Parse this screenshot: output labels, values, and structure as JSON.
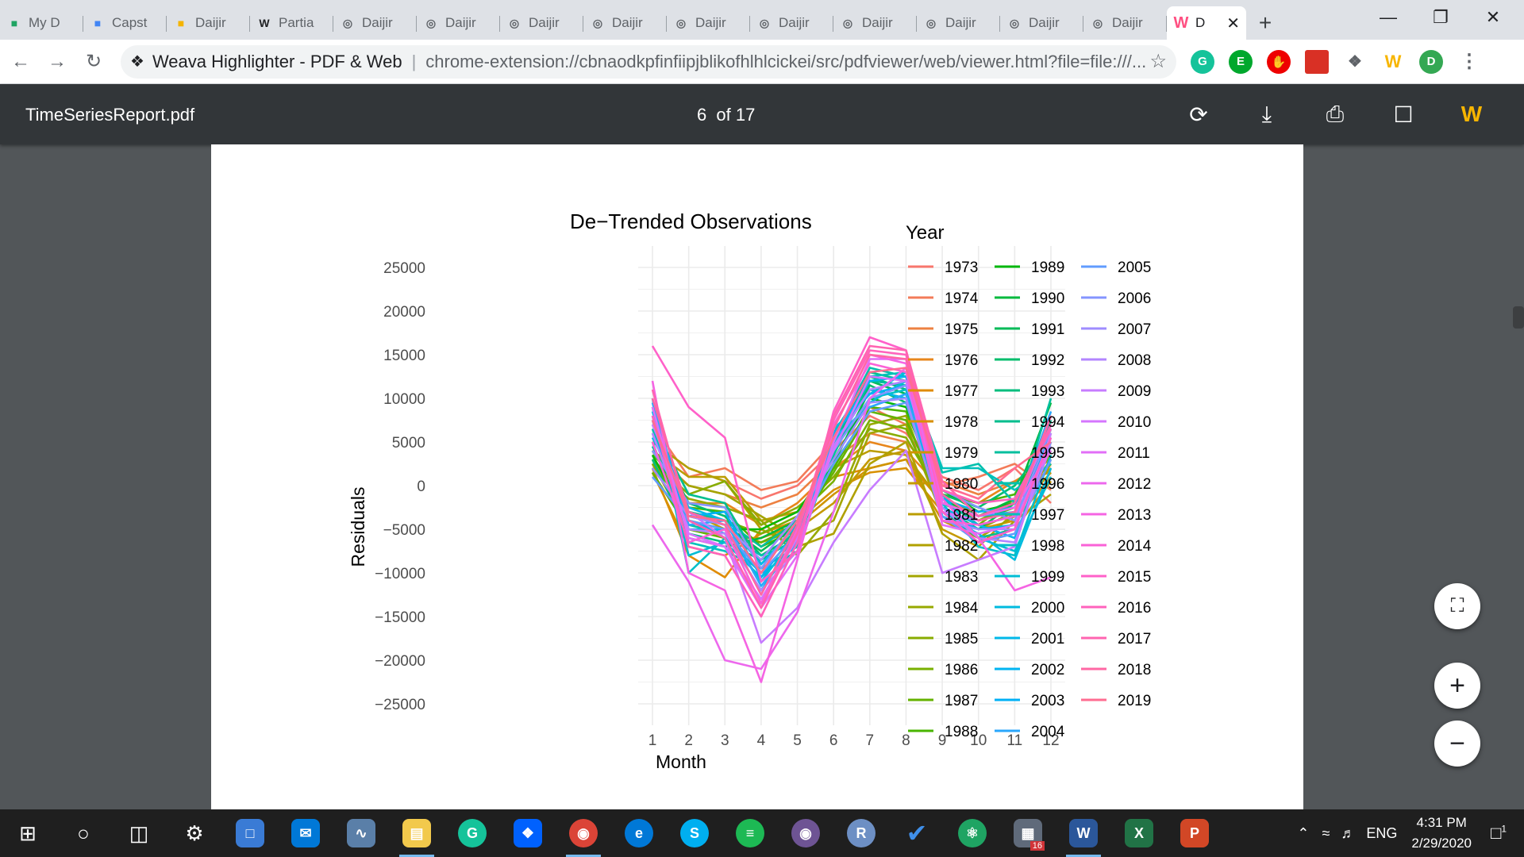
{
  "browser": {
    "tabs": [
      {
        "label": "My D",
        "icon": "drive-icon",
        "color": "#1fa463"
      },
      {
        "label": "Capst",
        "icon": "docs-icon",
        "color": "#4285f4"
      },
      {
        "label": "Daijir",
        "icon": "slides-icon",
        "color": "#f4b400"
      },
      {
        "label": "Partia",
        "icon": "wikipedia-icon",
        "color": "#202124"
      },
      {
        "label": "Daijir",
        "icon": "globe-icon",
        "color": "#5f6368"
      },
      {
        "label": "Daijir",
        "icon": "globe-icon",
        "color": "#5f6368"
      },
      {
        "label": "Daijir",
        "icon": "globe-icon",
        "color": "#5f6368"
      },
      {
        "label": "Daijir",
        "icon": "globe-icon",
        "color": "#5f6368"
      },
      {
        "label": "Daijir",
        "icon": "globe-icon",
        "color": "#5f6368"
      },
      {
        "label": "Daijir",
        "icon": "globe-icon",
        "color": "#5f6368"
      },
      {
        "label": "Daijir",
        "icon": "globe-icon",
        "color": "#5f6368"
      },
      {
        "label": "Daijir",
        "icon": "globe-icon",
        "color": "#5f6368"
      },
      {
        "label": "Daijir",
        "icon": "globe-icon",
        "color": "#5f6368"
      },
      {
        "label": "Daijir",
        "icon": "globe-icon",
        "color": "#5f6368"
      }
    ],
    "active_tab": {
      "label": "D",
      "icon": "weava-icon"
    },
    "omnibox": {
      "extension_name": "Weava Highlighter - PDF & Web",
      "url": "chrome-extension://cbnaodkpfinfiipjblikofhlhlcickei/src/pdfviewer/web/viewer.html?file=file:///..."
    },
    "profile_initial": "D"
  },
  "pdf_viewer": {
    "filename": "TimeSeriesReport.pdf",
    "current_page": "6",
    "page_count_label": "of 17"
  },
  "chart_data": {
    "type": "line",
    "title": "De−Trended Observations",
    "xlabel": "Month",
    "ylabel": "Residuals",
    "x": [
      1,
      2,
      3,
      4,
      5,
      6,
      7,
      8,
      9,
      10,
      11,
      12
    ],
    "x_ticks": [
      "1",
      "2",
      "3",
      "4",
      "5",
      "6",
      "7",
      "8",
      "9",
      "10",
      "11",
      "12"
    ],
    "y_ticks": [
      "25000",
      "20000",
      "15000",
      "10000",
      "5000",
      "0",
      "−5000",
      "−10000",
      "−15000",
      "−20000",
      "−25000"
    ],
    "ylim": [
      -25000,
      25000
    ],
    "grid": true,
    "legend_title": "Year",
    "legend_position": "right",
    "series": [
      {
        "name": "1973",
        "color": "#f8766d",
        "values": [
          5000,
          2000,
          500,
          -1500,
          0,
          4000,
          8000,
          6000,
          1000,
          -500,
          2000,
          -2000
        ]
      },
      {
        "name": "1974",
        "color": "#f37b59",
        "values": [
          7000,
          1000,
          2000,
          -500,
          500,
          5000,
          9000,
          7000,
          0,
          1000,
          2500,
          -500
        ]
      },
      {
        "name": "1975",
        "color": "#ed8141",
        "values": [
          4000,
          0,
          -1000,
          -2500,
          -1000,
          3000,
          6000,
          5000,
          500,
          -1000,
          500,
          1500
        ]
      },
      {
        "name": "1976",
        "color": "#e7861b",
        "values": [
          3000,
          -2000,
          -2000,
          -4500,
          -2000,
          2000,
          5000,
          4000,
          -500,
          -2000,
          500,
          3000
        ]
      },
      {
        "name": "1977",
        "color": "#e08b00",
        "values": [
          2000,
          -8000,
          -10500,
          -5000,
          -3000,
          1000,
          2000,
          3000,
          -2000,
          -3000,
          -2000,
          2000
        ]
      },
      {
        "name": "1978",
        "color": "#d89000",
        "values": [
          1500,
          -7000,
          -8000,
          -5500,
          -4000,
          -500,
          1500,
          2000,
          -3000,
          -5000,
          -4000,
          1000
        ]
      },
      {
        "name": "1979",
        "color": "#cf9400",
        "values": [
          2500,
          -5000,
          -6000,
          -6000,
          -4500,
          -1000,
          2000,
          3000,
          -4000,
          -6000,
          -5000,
          500
        ]
      },
      {
        "name": "1980",
        "color": "#c59900",
        "values": [
          3000,
          -3000,
          -5000,
          -6500,
          -5000,
          -2000,
          3000,
          4000,
          -5000,
          -7000,
          -3000,
          1500
        ]
      },
      {
        "name": "1981",
        "color": "#bb9d00",
        "values": [
          4000,
          1000,
          1000,
          -4000,
          -3000,
          2000,
          4000,
          3500,
          -2000,
          -4000,
          -2000,
          2000
        ]
      },
      {
        "name": "1982",
        "color": "#b0a100",
        "values": [
          5000,
          2000,
          500,
          -5000,
          -7000,
          -5500,
          2500,
          5000,
          -5500,
          -8500,
          -4000,
          -1000
        ]
      },
      {
        "name": "1983",
        "color": "#a3a500",
        "values": [
          3500,
          0,
          -1000,
          -3500,
          -6000,
          -4000,
          6000,
          7000,
          -3500,
          -6000,
          -3500,
          2500
        ]
      },
      {
        "name": "1984",
        "color": "#97a900",
        "values": [
          2000,
          -1500,
          -2500,
          -4000,
          -8000,
          -3000,
          7000,
          8000,
          -3000,
          -5000,
          -3000,
          3000
        ]
      },
      {
        "name": "1985",
        "color": "#88ac00",
        "values": [
          3000,
          -1000,
          500,
          -4500,
          -2500,
          1000,
          6500,
          5500,
          -1500,
          -3500,
          -2000,
          4000
        ]
      },
      {
        "name": "1986",
        "color": "#78b000",
        "values": [
          2500,
          -3000,
          -4000,
          -5500,
          -3500,
          500,
          7500,
          6500,
          -2500,
          -4500,
          -1500,
          3500
        ]
      },
      {
        "name": "1987",
        "color": "#64b200",
        "values": [
          1500,
          -5000,
          -6000,
          -6500,
          -4500,
          1500,
          8500,
          7500,
          -2000,
          -4000,
          -2500,
          5000
        ]
      },
      {
        "name": "1988",
        "color": "#49b500",
        "values": [
          4000,
          -2500,
          -3000,
          -7000,
          -5000,
          2000,
          9000,
          8500,
          -1000,
          -2000,
          -1000,
          6000
        ]
      },
      {
        "name": "1989",
        "color": "#00b70c",
        "values": [
          3500,
          -4000,
          -5000,
          -5000,
          -3000,
          3000,
          10000,
          9000,
          -500,
          -3000,
          -2000,
          8000
        ]
      },
      {
        "name": "1990",
        "color": "#00b93d",
        "values": [
          5000,
          -6000,
          -7000,
          -6000,
          -4000,
          2500,
          11000,
          10000,
          -1500,
          -3500,
          -1500,
          9500
        ]
      },
      {
        "name": "1991",
        "color": "#00ba57",
        "values": [
          2000,
          -3500,
          -4500,
          -7500,
          -4500,
          3500,
          12000,
          10500,
          -2500,
          -5000,
          -2000,
          4500
        ]
      },
      {
        "name": "1992",
        "color": "#00bc6b",
        "values": [
          6000,
          -2000,
          -3500,
          -8000,
          -5500,
          4000,
          11500,
          9500,
          -1000,
          -2500,
          0,
          5500
        ]
      },
      {
        "name": "1993",
        "color": "#00bd7d",
        "values": [
          3000,
          -5500,
          -6500,
          -8500,
          -6000,
          4500,
          12500,
          11000,
          -2000,
          -4000,
          -3000,
          6500
        ]
      },
      {
        "name": "1994",
        "color": "#00be8e",
        "values": [
          7000,
          -1000,
          -2000,
          -9000,
          -5000,
          5000,
          13000,
          12000,
          -3000,
          -6000,
          -5000,
          7500
        ]
      },
      {
        "name": "1995",
        "color": "#00bf9e",
        "values": [
          4500,
          -3000,
          -4000,
          -7000,
          -4000,
          3500,
          12000,
          11500,
          -1500,
          -4500,
          -3500,
          10000
        ]
      },
      {
        "name": "1996",
        "color": "#00c0ad",
        "values": [
          6500,
          -4500,
          -5500,
          -8000,
          -6500,
          5500,
          13500,
          12500,
          1500,
          2500,
          -2000,
          4000
        ]
      },
      {
        "name": "1997",
        "color": "#00c0bb",
        "values": [
          8000,
          -6500,
          -7500,
          -9500,
          -7000,
          6000,
          12500,
          13000,
          2000,
          2000,
          -500,
          2500
        ]
      },
      {
        "name": "1998",
        "color": "#00bfc8",
        "values": [
          10000,
          -10000,
          -6000,
          -10000,
          -7500,
          4000,
          10000,
          11000,
          -2000,
          -7000,
          -8000,
          3500
        ]
      },
      {
        "name": "1999",
        "color": "#00bdd4",
        "values": [
          9000,
          -8000,
          -6500,
          -10500,
          -6500,
          5000,
          9500,
          12000,
          -1000,
          -6000,
          -7500,
          1000
        ]
      },
      {
        "name": "2000",
        "color": "#00bbdf",
        "values": [
          7500,
          -5000,
          -5000,
          -11000,
          -5500,
          6500,
          10500,
          13000,
          -3500,
          -5500,
          -8500,
          2000
        ]
      },
      {
        "name": "2001",
        "color": "#00b8e9",
        "values": [
          5500,
          -2500,
          -4000,
          -9000,
          -4500,
          4500,
          11000,
          10000,
          -2500,
          -4500,
          -6000,
          5000
        ]
      },
      {
        "name": "2002",
        "color": "#00b4f2",
        "values": [
          8500,
          -4000,
          -5500,
          -12000,
          -6000,
          5500,
          12000,
          12500,
          -3000,
          -5000,
          -4500,
          6000
        ]
      },
      {
        "name": "2003",
        "color": "#00b0f6",
        "values": [
          6000,
          -3500,
          -3000,
          -10500,
          -5000,
          6000,
          10500,
          11500,
          -1500,
          -3000,
          -2500,
          7000
        ]
      },
      {
        "name": "2004",
        "color": "#2aa7fc",
        "values": [
          9500,
          -4500,
          -4000,
          -11500,
          -6500,
          5500,
          9000,
          10500,
          -2000,
          -3500,
          -3000,
          8500
        ]
      },
      {
        "name": "2005",
        "color": "#619cff",
        "values": [
          1000,
          -4000,
          -5000,
          -10000,
          -5500,
          2500,
          8500,
          9500,
          -3500,
          -6500,
          -5500,
          3000
        ]
      },
      {
        "name": "2006",
        "color": "#8494ff",
        "values": [
          4000,
          -2000,
          -2500,
          -9500,
          -4000,
          4000,
          10000,
          11500,
          -500,
          -2500,
          -4000,
          6500
        ]
      },
      {
        "name": "2007",
        "color": "#9f8cff",
        "values": [
          2000,
          -3500,
          -4500,
          -8500,
          -3500,
          3000,
          9500,
          10000,
          -4000,
          -5000,
          -5000,
          5000
        ]
      },
      {
        "name": "2008",
        "color": "#b385ff",
        "values": [
          6000,
          -5000,
          -5500,
          -12000,
          -7500,
          4500,
          11000,
          12000,
          -2500,
          -6000,
          -6500,
          4500
        ]
      },
      {
        "name": "2009",
        "color": "#c77cff",
        "values": [
          7000,
          -3000,
          -6000,
          -18000,
          -14000,
          -6500,
          -500,
          4000,
          -10000,
          -8500,
          -7000,
          6000
        ]
      },
      {
        "name": "2010",
        "color": "#d575fe",
        "values": [
          8000,
          -5500,
          -7000,
          -13000,
          -6000,
          4000,
          12500,
          12000,
          -3000,
          -4000,
          -3000,
          7000
        ]
      },
      {
        "name": "2011",
        "color": "#e26ef7",
        "values": [
          9000,
          -6000,
          -7000,
          -14000,
          -8000,
          5000,
          14500,
          14500,
          -4500,
          -5500,
          -4500,
          5500
        ]
      },
      {
        "name": "2012",
        "color": "#ed68ed",
        "values": [
          -4500,
          -11000,
          -20000,
          -21000,
          -14500,
          -3000,
          10000,
          13500,
          -2000,
          -3500,
          -2500,
          4000
        ]
      },
      {
        "name": "2013",
        "color": "#f564e3",
        "values": [
          12000,
          -10000,
          -12000,
          -22500,
          -8500,
          6500,
          15000,
          14000,
          -1500,
          -6000,
          -12000,
          -10500
        ]
      },
      {
        "name": "2014",
        "color": "#fa62d7",
        "values": [
          5000,
          -6500,
          -5000,
          -13500,
          -5000,
          7000,
          14000,
          13000,
          -4000,
          -4500,
          -3500,
          8000
        ]
      },
      {
        "name": "2015",
        "color": "#ff61c9",
        "values": [
          16000,
          9000,
          5500,
          -11000,
          -7500,
          8500,
          17000,
          15500,
          -3000,
          -6500,
          -5000,
          5500
        ]
      },
      {
        "name": "2016",
        "color": "#ff62bc",
        "values": [
          8000,
          -7000,
          -8000,
          -15000,
          -6500,
          7500,
          15500,
          15000,
          -500,
          -2000,
          -1500,
          6500
        ]
      },
      {
        "name": "2017",
        "color": "#ff64b0",
        "values": [
          11000,
          -4000,
          -6000,
          -14000,
          -5500,
          8000,
          16000,
          15500,
          500,
          -3500,
          -2000,
          7000
        ]
      },
      {
        "name": "2018",
        "color": "#ff67a4",
        "values": [
          10000,
          -3000,
          -4500,
          -12500,
          -4500,
          6500,
          15000,
          14500,
          -1000,
          -4000,
          -3000,
          8000
        ]
      },
      {
        "name": "2019",
        "color": "#ff6c91",
        "values": [
          7500,
          -3500,
          -4000,
          -10000,
          -4000,
          5500,
          13000,
          13500,
          0,
          -1500,
          2000,
          5000
        ]
      }
    ]
  },
  "fabs": {
    "fit_page_icon": "fit-to-page-icon",
    "zoom_in_label": "+",
    "zoom_out_label": "−"
  },
  "taskbar": {
    "language": "ENG",
    "time": "4:31 PM",
    "date": "2/29/2020",
    "notification_count": "1",
    "word_badge": "16"
  }
}
